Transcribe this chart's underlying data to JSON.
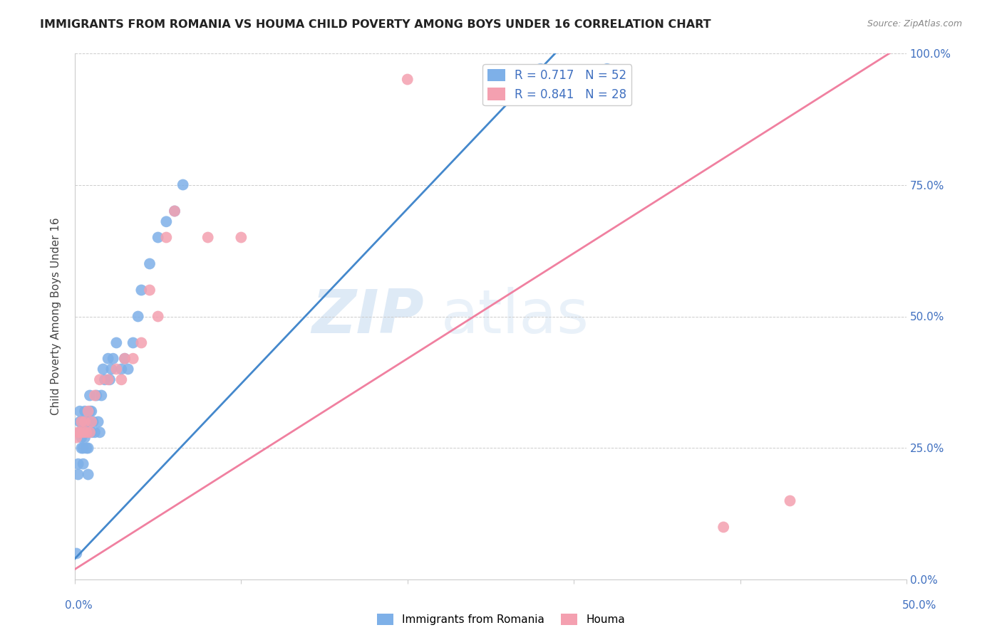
{
  "title": "IMMIGRANTS FROM ROMANIA VS HOUMA CHILD POVERTY AMONG BOYS UNDER 16 CORRELATION CHART",
  "source": "Source: ZipAtlas.com",
  "ylabel": "Child Poverty Among Boys Under 16",
  "ytick_labels": [
    "0.0%",
    "25.0%",
    "50.0%",
    "75.0%",
    "100.0%"
  ],
  "ytick_values": [
    0,
    0.25,
    0.5,
    0.75,
    1.0
  ],
  "xlim": [
    0,
    0.5
  ],
  "ylim": [
    0,
    1.0
  ],
  "legend1_label": "R = 0.717   N = 52",
  "legend2_label": "R = 0.841   N = 28",
  "legend_bottom_label1": "Immigrants from Romania",
  "legend_bottom_label2": "Houma",
  "color_blue": "#7EB0E8",
  "color_pink": "#F4A0B0",
  "color_blue_line": "#4488CC",
  "color_pink_line": "#F080A0",
  "text_color": "#4070C0",
  "watermark_zip": "ZIP",
  "watermark_atlas": "atlas",
  "blue_scatter_x": [
    0.001,
    0.002,
    0.002,
    0.003,
    0.003,
    0.003,
    0.004,
    0.004,
    0.004,
    0.005,
    0.005,
    0.005,
    0.005,
    0.006,
    0.006,
    0.006,
    0.007,
    0.007,
    0.007,
    0.008,
    0.008,
    0.008,
    0.009,
    0.009,
    0.01,
    0.01,
    0.011,
    0.012,
    0.013,
    0.014,
    0.015,
    0.016,
    0.017,
    0.018,
    0.02,
    0.021,
    0.022,
    0.023,
    0.025,
    0.028,
    0.03,
    0.032,
    0.035,
    0.038,
    0.04,
    0.045,
    0.05,
    0.055,
    0.06,
    0.065,
    0.28,
    0.32
  ],
  "blue_scatter_y": [
    0.05,
    0.2,
    0.22,
    0.28,
    0.3,
    0.32,
    0.25,
    0.27,
    0.3,
    0.22,
    0.25,
    0.28,
    0.3,
    0.27,
    0.3,
    0.32,
    0.25,
    0.28,
    0.3,
    0.2,
    0.25,
    0.3,
    0.32,
    0.35,
    0.28,
    0.32,
    0.3,
    0.28,
    0.35,
    0.3,
    0.28,
    0.35,
    0.4,
    0.38,
    0.42,
    0.38,
    0.4,
    0.42,
    0.45,
    0.4,
    0.42,
    0.4,
    0.45,
    0.5,
    0.55,
    0.6,
    0.65,
    0.68,
    0.7,
    0.75,
    0.97,
    0.97
  ],
  "pink_scatter_x": [
    0.001,
    0.002,
    0.003,
    0.004,
    0.005,
    0.006,
    0.007,
    0.008,
    0.009,
    0.01,
    0.012,
    0.015,
    0.02,
    0.025,
    0.028,
    0.03,
    0.035,
    0.04,
    0.045,
    0.05,
    0.055,
    0.06,
    0.08,
    0.1,
    0.2,
    0.28,
    0.39,
    0.43
  ],
  "pink_scatter_y": [
    0.27,
    0.28,
    0.28,
    0.3,
    0.28,
    0.3,
    0.28,
    0.32,
    0.28,
    0.3,
    0.35,
    0.38,
    0.38,
    0.4,
    0.38,
    0.42,
    0.42,
    0.45,
    0.55,
    0.5,
    0.65,
    0.7,
    0.65,
    0.65,
    0.95,
    0.95,
    0.1,
    0.15
  ],
  "blue_line_x": [
    0.0,
    0.295
  ],
  "blue_line_y": [
    0.04,
    1.02
  ],
  "pink_line_x": [
    0.0,
    0.5
  ],
  "pink_line_y": [
    0.02,
    1.02
  ]
}
